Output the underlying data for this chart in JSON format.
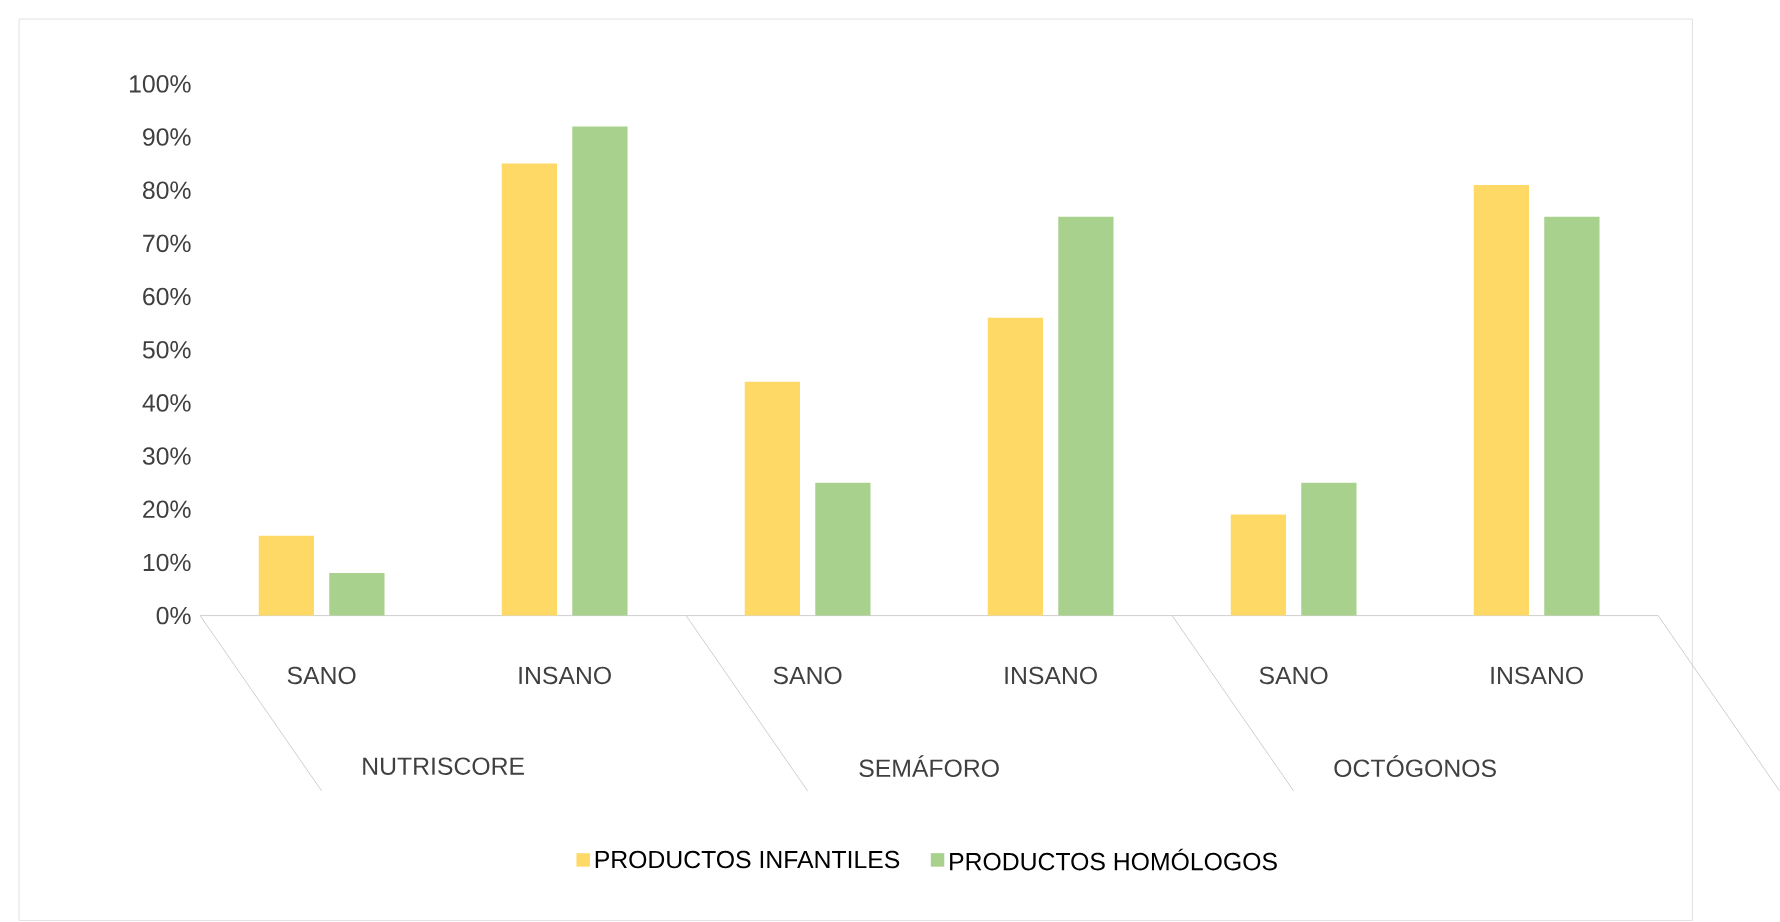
{
  "chart_data": {
    "type": "bar",
    "categories": [
      "SANO",
      "INSANO",
      "SANO",
      "INSANO",
      "SANO",
      "INSANO"
    ],
    "series": [
      {
        "name": "PRODUCTOS INFANTILES",
        "color": "#ffd966",
        "values": [
          15,
          85,
          44,
          56,
          19,
          81
        ]
      },
      {
        "name": "PRODUCTOS HOMÓLOGOS",
        "color": "#a9d18e",
        "values": [
          8,
          92,
          25,
          75,
          25,
          75
        ]
      }
    ],
    "annotations": [
      "NUTRISCORE",
      "SEMÁFORO",
      "OCTÓGONOS"
    ],
    "ylim": [
      0,
      100
    ],
    "yticks": [
      {
        "value": 0,
        "label": "0%"
      },
      {
        "value": 10,
        "label": "10%"
      },
      {
        "value": 20,
        "label": "20%"
      },
      {
        "value": 30,
        "label": "30%"
      },
      {
        "value": 40,
        "label": "40%"
      },
      {
        "value": 50,
        "label": "50%"
      },
      {
        "value": 60,
        "label": "60%"
      },
      {
        "value": 70,
        "label": "70%"
      },
      {
        "value": 80,
        "label": "80%"
      },
      {
        "value": 90,
        "label": "90%"
      },
      {
        "value": 100,
        "label": "100%"
      }
    ],
    "legend": "bottom"
  }
}
